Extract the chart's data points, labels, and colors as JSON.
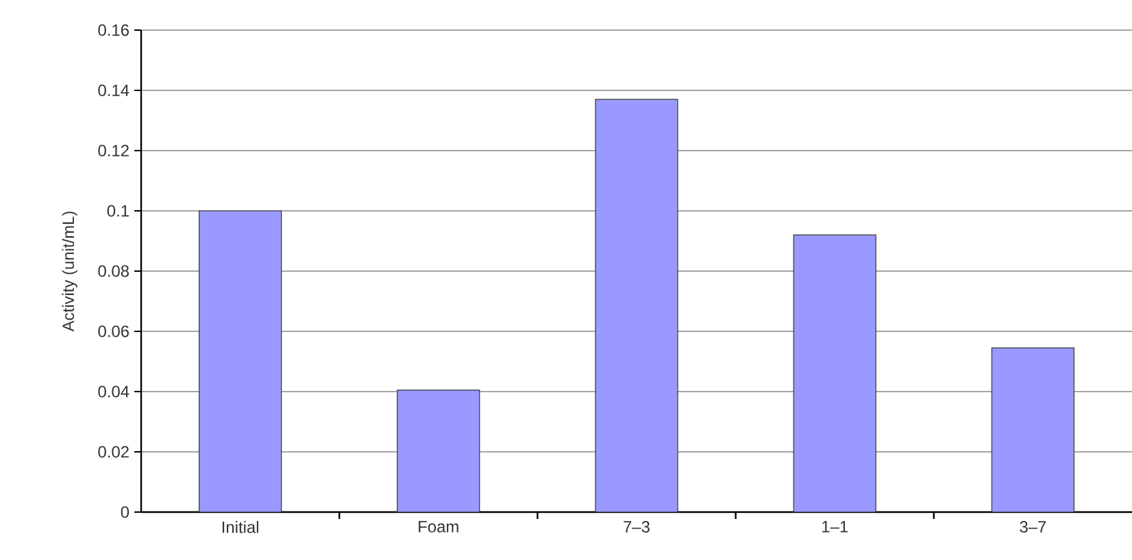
{
  "chart_data": {
    "type": "bar",
    "ylabel": "Activity (unit/mL)",
    "categories": [
      "Initial",
      "Foam",
      "7–3",
      "1–1",
      "3–7"
    ],
    "values": [
      0.1,
      0.0405,
      0.137,
      0.092,
      0.0545
    ],
    "color": "#9999ff",
    "ylim": [
      0,
      0.16
    ],
    "yticks": [
      0,
      0.02,
      0.04,
      0.06,
      0.08,
      0.1,
      0.12,
      0.14,
      0.16
    ],
    "grid": "y"
  }
}
